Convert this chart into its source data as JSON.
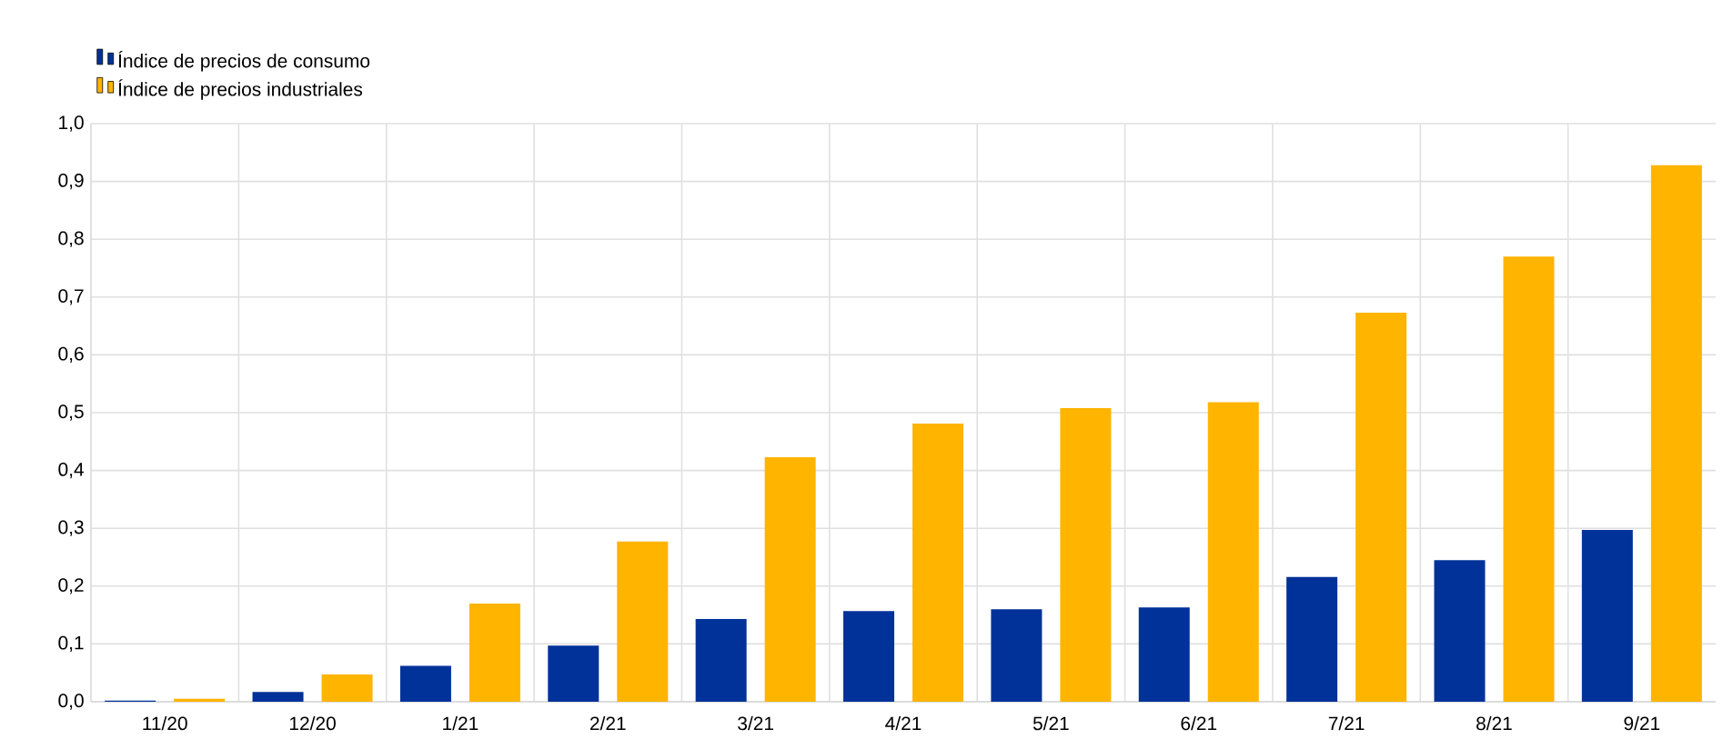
{
  "chart_data": {
    "type": "bar",
    "categories": [
      "11/20",
      "12/20",
      "1/21",
      "2/21",
      "3/21",
      "4/21",
      "5/21",
      "6/21",
      "7/21",
      "8/21",
      "9/21"
    ],
    "series": [
      {
        "name": "Índice de precios de consumo",
        "color": "#003299",
        "values": [
          0.002,
          0.017,
          0.062,
          0.097,
          0.143,
          0.157,
          0.16,
          0.163,
          0.216,
          0.245,
          0.297
        ]
      },
      {
        "name": "Índice de precios industriales",
        "color": "#ffb400",
        "values": [
          0.005,
          0.047,
          0.17,
          0.277,
          0.423,
          0.481,
          0.508,
          0.518,
          0.673,
          0.77,
          0.928
        ]
      }
    ],
    "ylim": [
      0,
      1
    ],
    "yticks": [
      {
        "value": 0,
        "label": "0,0"
      },
      {
        "value": 0.1,
        "label": "0,1"
      },
      {
        "value": 0.2,
        "label": "0,2"
      },
      {
        "value": 0.3,
        "label": "0,3"
      },
      {
        "value": 0.4,
        "label": "0,4"
      },
      {
        "value": 0.5,
        "label": "0,5"
      },
      {
        "value": 0.6,
        "label": "0,6"
      },
      {
        "value": 0.7,
        "label": "0,7"
      },
      {
        "value": 0.8,
        "label": "0,8"
      },
      {
        "value": 0.9,
        "label": "0,9"
      },
      {
        "value": 1,
        "label": "1,0"
      }
    ],
    "grid": true,
    "legend": "top left"
  }
}
